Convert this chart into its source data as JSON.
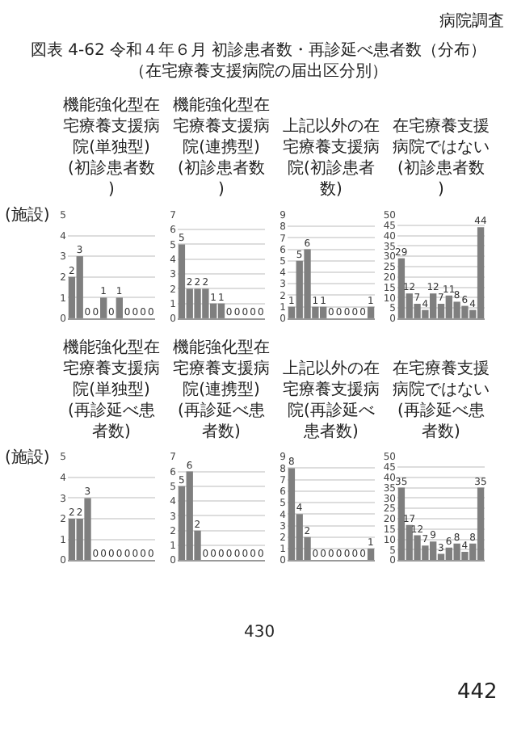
{
  "chart_data": [
    {
      "type": "bar",
      "title": "機能強化型在宅療養支援病院(単独型)(初診患者数)",
      "ylabel": "(施設)",
      "annotations": [
        "病院調査",
        "図表 4-62 令和４年６月 初診患者数・再診延べ患者数（分布）",
        "（在宅療養支援病院の届出区分別）",
        "430",
        "442"
      ],
      "categories": [
        null,
        null,
        null,
        null,
        null,
        null,
        null,
        null,
        null,
        null,
        null
      ],
      "values": [
        2,
        3,
        0,
        0,
        1,
        0,
        1,
        0,
        0,
        0,
        0
      ],
      "color": "#7f7f7f",
      "ylim": [
        0,
        5
      ],
      "yticks": [
        0,
        1,
        2,
        3,
        4,
        5
      ],
      "grid": "y",
      "data_labels": true,
      "tick_labels": "y"
    },
    {
      "type": "bar",
      "title": "機能強化型在宅療養支援病院(連携型)(初診患者数)",
      "categories": [
        null,
        null,
        null,
        null,
        null,
        null,
        null,
        null,
        null,
        null,
        null
      ],
      "values": [
        5,
        2,
        2,
        2,
        1,
        1,
        0,
        0,
        0,
        0,
        0
      ],
      "color": "#7f7f7f",
      "ylim": [
        0,
        7
      ],
      "yticks": [
        0,
        1,
        2,
        3,
        4,
        5,
        6,
        7
      ],
      "grid": "y",
      "data_labels": true,
      "tick_labels": "y"
    },
    {
      "type": "bar",
      "title": "上記以外の在宅療養支援病院(初診患者数)",
      "categories": [
        null,
        null,
        null,
        null,
        null,
        null,
        null,
        null,
        null,
        null,
        null
      ],
      "values": [
        1,
        5,
        6,
        1,
        1,
        0,
        0,
        0,
        0,
        0,
        1
      ],
      "color": "#7f7f7f",
      "ylim": [
        0,
        9
      ],
      "yticks": [
        0,
        1,
        2,
        3,
        4,
        5,
        6,
        7,
        8,
        9
      ],
      "grid": "y",
      "data_labels": true,
      "tick_labels": "y"
    },
    {
      "type": "bar",
      "title": "在宅療養支援病院ではない(初診患者数)",
      "categories": [
        null,
        null,
        null,
        null,
        null,
        null,
        null,
        null,
        null,
        null,
        null
      ],
      "values": [
        29,
        12,
        7,
        4,
        12,
        7,
        11,
        8,
        6,
        4,
        44
      ],
      "color": "#7f7f7f",
      "ylim": [
        0,
        50
      ],
      "yticks": [
        0,
        5,
        10,
        15,
        20,
        25,
        30,
        35,
        40,
        45,
        50
      ],
      "grid": "y",
      "data_labels": true,
      "tick_labels": "y"
    },
    {
      "type": "bar",
      "title": "機能強化型在宅療養支援病院(単独型)(再診延べ患者数)",
      "ylabel": "(施設)",
      "categories": [
        null,
        null,
        null,
        null,
        null,
        null,
        null,
        null,
        null,
        null,
        null
      ],
      "values": [
        2,
        2,
        3,
        0,
        0,
        0,
        0,
        0,
        0,
        0,
        0
      ],
      "color": "#7f7f7f",
      "ylim": [
        0,
        5
      ],
      "yticks": [
        0,
        1,
        2,
        3,
        4,
        5
      ],
      "grid": "y",
      "data_labels": true,
      "tick_labels": "y"
    },
    {
      "type": "bar",
      "title": "機能強化型在宅療養支援病院(連携型)(再診延べ患者数)",
      "categories": [
        null,
        null,
        null,
        null,
        null,
        null,
        null,
        null,
        null,
        null,
        null
      ],
      "values": [
        5,
        6,
        2,
        0,
        0,
        0,
        0,
        0,
        0,
        0,
        0
      ],
      "color": "#7f7f7f",
      "ylim": [
        0,
        7
      ],
      "yticks": [
        0,
        1,
        2,
        3,
        4,
        5,
        6,
        7
      ],
      "grid": "y",
      "data_labels": true,
      "tick_labels": "y"
    },
    {
      "type": "bar",
      "title": "上記以外の在宅療養支援病院(再診延べ患者数)",
      "categories": [
        null,
        null,
        null,
        null,
        null,
        null,
        null,
        null,
        null,
        null,
        null
      ],
      "values": [
        8,
        4,
        2,
        0,
        0,
        0,
        0,
        0,
        0,
        0,
        1
      ],
      "color": "#7f7f7f",
      "ylim": [
        0,
        9
      ],
      "yticks": [
        0,
        1,
        2,
        3,
        4,
        5,
        6,
        7,
        8,
        9
      ],
      "grid": "y",
      "data_labels": true,
      "tick_labels": "y"
    },
    {
      "type": "bar",
      "title": "在宅療養支援病院ではない(再診延べ患者数)",
      "categories": [
        null,
        null,
        null,
        null,
        null,
        null,
        null,
        null,
        null,
        null,
        null
      ],
      "values": [
        35,
        17,
        12,
        7,
        9,
        3,
        6,
        8,
        4,
        8,
        35
      ],
      "color": "#7f7f7f",
      "ylim": [
        0,
        50
      ],
      "yticks": [
        0,
        5,
        10,
        15,
        20,
        25,
        30,
        35,
        40,
        45,
        50
      ],
      "grid": "y",
      "data_labels": true,
      "tick_labels": "y"
    }
  ]
}
